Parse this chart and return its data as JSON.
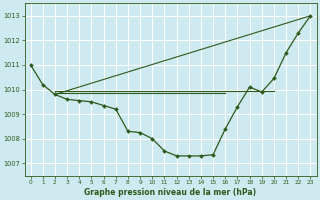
{
  "background_color": "#ceeaf0",
  "grid_color": "#ffffff",
  "line_color": "#2d5a1b",
  "xlabel": "Graphe pression niveau de la mer (hPa)",
  "xlim": [
    -0.5,
    23.5
  ],
  "ylim": [
    1006.5,
    1013.5
  ],
  "yticks": [
    1007,
    1008,
    1009,
    1010,
    1011,
    1012,
    1013
  ],
  "xticks": [
    0,
    1,
    2,
    3,
    4,
    5,
    6,
    7,
    8,
    9,
    10,
    11,
    12,
    13,
    14,
    15,
    16,
    17,
    18,
    19,
    20,
    21,
    22,
    23
  ],
  "series_main": {
    "x": [
      0,
      1,
      2,
      3,
      4,
      5,
      6,
      7,
      8,
      9,
      10,
      11,
      12,
      13,
      14,
      15,
      16,
      17,
      18,
      19,
      20,
      21,
      22,
      23
    ],
    "y": [
      1011.0,
      1010.2,
      1009.8,
      1009.6,
      1009.55,
      1009.5,
      1009.35,
      1009.2,
      1008.3,
      1008.25,
      1008.0,
      1007.5,
      1007.3,
      1007.3,
      1007.3,
      1007.35,
      1008.4,
      1009.3,
      1010.1,
      1009.9,
      1010.45,
      1011.5,
      1012.3,
      1013.0
    ]
  },
  "series_diag": {
    "x": [
      2,
      23
    ],
    "y": [
      1009.8,
      1013.0
    ]
  },
  "series_flat1": {
    "x": [
      2,
      20
    ],
    "y": [
      1009.95,
      1009.95
    ]
  },
  "series_flat2": {
    "x": [
      2,
      16
    ],
    "y": [
      1009.85,
      1009.85
    ]
  }
}
